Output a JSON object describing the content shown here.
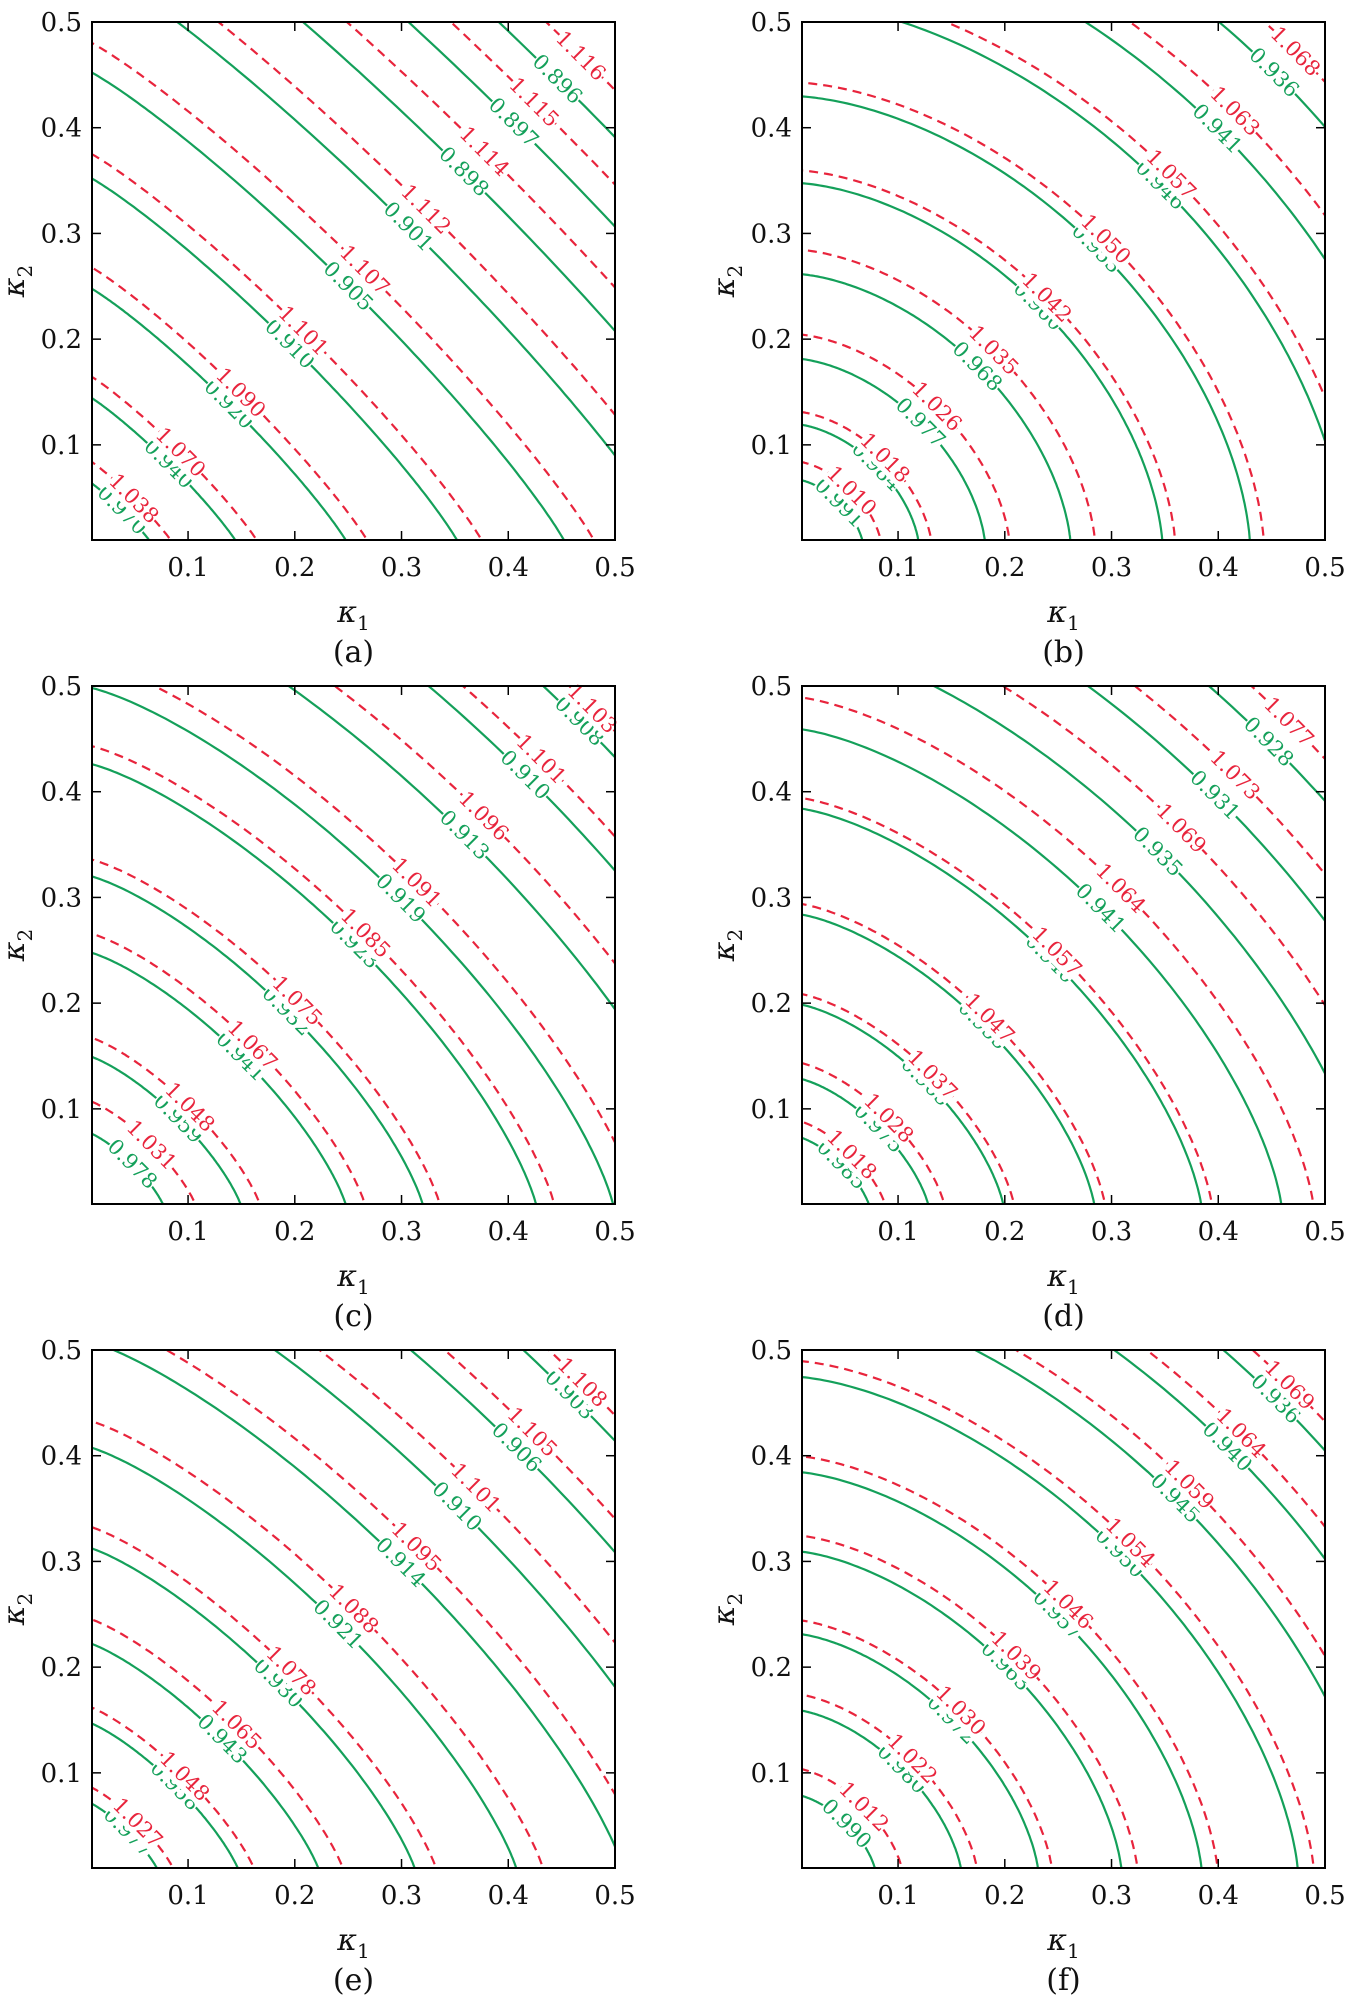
{
  "chart_data": [
    {
      "type": "contour",
      "caption": "(a)",
      "xlabel": "κ1",
      "ylabel": "κ2",
      "xlim": [
        0.01,
        0.5
      ],
      "ylim": [
        0.01,
        0.5
      ],
      "xticks": [
        "0.1",
        "0.2",
        "0.3",
        "0.4",
        "0.5"
      ],
      "yticks": [
        "0.1",
        "0.2",
        "0.3",
        "0.4",
        "0.5"
      ],
      "colors": {
        "solid": "#14a05a",
        "dashed": "#e8243c"
      },
      "shape": 1.15,
      "solid_levels": [
        {
          "label": "0.970",
          "intercept": 0.07
        },
        {
          "label": "0.940",
          "intercept": 0.15
        },
        {
          "label": "0.920",
          "intercept": 0.253
        },
        {
          "label": "0.910",
          "intercept": 0.357
        },
        {
          "label": "0.905",
          "intercept": 0.457
        },
        {
          "label": "0.901",
          "intercept": 0.56
        },
        {
          "label": "0.898",
          "intercept": 0.655
        },
        {
          "label": "0.897",
          "intercept": 0.74
        },
        {
          "label": "0.896",
          "intercept": 0.815
        }
      ],
      "dashed_levels": [
        {
          "label": "1.038",
          "intercept": 0.09
        },
        {
          "label": "1.070",
          "intercept": 0.17
        },
        {
          "label": "1.090",
          "intercept": 0.273
        },
        {
          "label": "1.101",
          "intercept": 0.38
        },
        {
          "label": "1.107",
          "intercept": 0.485
        },
        {
          "label": "1.112",
          "intercept": 0.59
        },
        {
          "label": "1.114",
          "intercept": 0.69
        },
        {
          "label": "1.115",
          "intercept": 0.775
        },
        {
          "label": "1.116",
          "intercept": 0.855
        }
      ]
    },
    {
      "type": "contour",
      "caption": "(b)",
      "xlabel": "κ1",
      "ylabel": "κ2",
      "xlim": [
        0.01,
        0.5
      ],
      "ylim": [
        0.01,
        0.5
      ],
      "xticks": [
        "0.1",
        "0.2",
        "0.3",
        "0.4",
        "0.5"
      ],
      "yticks": [
        "0.1",
        "0.2",
        "0.3",
        "0.4",
        "0.5"
      ],
      "colors": {
        "solid": "#14a05a",
        "dashed": "#e8243c"
      },
      "shape": 1.7,
      "solid_levels": [
        {
          "label": "0.991",
          "intercept": 0.068
        },
        {
          "label": "0.984",
          "intercept": 0.12
        },
        {
          "label": "0.977",
          "intercept": 0.182
        },
        {
          "label": "0.968",
          "intercept": 0.262
        },
        {
          "label": "0.960",
          "intercept": 0.348
        },
        {
          "label": "0.953",
          "intercept": 0.43
        },
        {
          "label": "0.946",
          "intercept": 0.52
        },
        {
          "label": "0.941",
          "intercept": 0.6
        },
        {
          "label": "0.936",
          "intercept": 0.68
        }
      ],
      "dashed_levels": [
        {
          "label": "1.010",
          "intercept": 0.085
        },
        {
          "label": "1.018",
          "intercept": 0.132
        },
        {
          "label": "1.026",
          "intercept": 0.205
        },
        {
          "label": "1.035",
          "intercept": 0.285
        },
        {
          "label": "1.042",
          "intercept": 0.36
        },
        {
          "label": "1.050",
          "intercept": 0.443
        },
        {
          "label": "1.057",
          "intercept": 0.535
        },
        {
          "label": "1.063",
          "intercept": 0.625
        },
        {
          "label": "1.068",
          "intercept": 0.71
        }
      ]
    },
    {
      "type": "contour",
      "caption": "(c)",
      "xlabel": "κ1",
      "ylabel": "κ2",
      "xlim": [
        0.01,
        0.5
      ],
      "ylim": [
        0.01,
        0.5
      ],
      "xticks": [
        "0.1",
        "0.2",
        "0.3",
        "0.4",
        "0.5"
      ],
      "yticks": [
        "0.1",
        "0.2",
        "0.3",
        "0.4",
        "0.5"
      ],
      "colors": {
        "solid": "#14a05a",
        "dashed": "#e8243c"
      },
      "shape": 1.35,
      "solid_levels": [
        {
          "label": "0.978",
          "intercept": 0.08
        },
        {
          "label": "0.959",
          "intercept": 0.152
        },
        {
          "label": "0.941",
          "intercept": 0.25
        },
        {
          "label": "0.932",
          "intercept": 0.322
        },
        {
          "label": "0.923",
          "intercept": 0.428
        },
        {
          "label": "0.919",
          "intercept": 0.5
        },
        {
          "label": "0.913",
          "intercept": 0.6
        },
        {
          "label": "0.910",
          "intercept": 0.695
        },
        {
          "label": "0.908",
          "intercept": 0.78
        }
      ],
      "dashed_levels": [
        {
          "label": "1.031",
          "intercept": 0.11
        },
        {
          "label": "1.048",
          "intercept": 0.17
        },
        {
          "label": "1.067",
          "intercept": 0.268
        },
        {
          "label": "1.075",
          "intercept": 0.338
        },
        {
          "label": "1.085",
          "intercept": 0.445
        },
        {
          "label": "1.091",
          "intercept": 0.525
        },
        {
          "label": "1.096",
          "intercept": 0.63
        },
        {
          "label": "1.101",
          "intercept": 0.72
        },
        {
          "label": "1.103",
          "intercept": 0.8
        }
      ]
    },
    {
      "type": "contour",
      "caption": "(d)",
      "xlabel": "κ1",
      "ylabel": "κ2",
      "xlim": [
        0.01,
        0.5
      ],
      "ylim": [
        0.01,
        0.5
      ],
      "xticks": [
        "0.1",
        "0.2",
        "0.3",
        "0.4",
        "0.5"
      ],
      "yticks": [
        "0.1",
        "0.2",
        "0.3",
        "0.4",
        "0.5"
      ],
      "colors": {
        "solid": "#14a05a",
        "dashed": "#e8243c"
      },
      "shape": 1.5,
      "solid_levels": [
        {
          "label": "0.985",
          "intercept": 0.075
        },
        {
          "label": "0.975",
          "intercept": 0.13
        },
        {
          "label": "0.965",
          "intercept": 0.2
        },
        {
          "label": "0.955",
          "intercept": 0.285
        },
        {
          "label": "0.946",
          "intercept": 0.385
        },
        {
          "label": "0.941",
          "intercept": 0.46
        },
        {
          "label": "0.935",
          "intercept": 0.545
        },
        {
          "label": "0.931",
          "intercept": 0.63
        },
        {
          "label": "0.928",
          "intercept": 0.71
        }
      ],
      "dashed_levels": [
        {
          "label": "1.018",
          "intercept": 0.09
        },
        {
          "label": "1.028",
          "intercept": 0.145
        },
        {
          "label": "1.037",
          "intercept": 0.21
        },
        {
          "label": "1.047",
          "intercept": 0.295
        },
        {
          "label": "1.057",
          "intercept": 0.395
        },
        {
          "label": "1.064",
          "intercept": 0.49
        },
        {
          "label": "1.069",
          "intercept": 0.58
        },
        {
          "label": "1.073",
          "intercept": 0.66
        },
        {
          "label": "1.077",
          "intercept": 0.74
        }
      ]
    },
    {
      "type": "contour",
      "caption": "(e)",
      "xlabel": "κ1",
      "ylabel": "κ2",
      "xlim": [
        0.01,
        0.5
      ],
      "ylim": [
        0.01,
        0.5
      ],
      "xticks": [
        "0.1",
        "0.2",
        "0.3",
        "0.4",
        "0.5"
      ],
      "yticks": [
        "0.1",
        "0.2",
        "0.3",
        "0.4",
        "0.5"
      ],
      "colors": {
        "solid": "#14a05a",
        "dashed": "#e8243c"
      },
      "shape": 1.3,
      "solid_levels": [
        {
          "label": "0.977",
          "intercept": 0.075
        },
        {
          "label": "0.958",
          "intercept": 0.15
        },
        {
          "label": "0.943",
          "intercept": 0.225
        },
        {
          "label": "0.930",
          "intercept": 0.315
        },
        {
          "label": "0.921",
          "intercept": 0.41
        },
        {
          "label": "0.914",
          "intercept": 0.51
        },
        {
          "label": "0.910",
          "intercept": 0.6
        },
        {
          "label": "0.906",
          "intercept": 0.695
        },
        {
          "label": "0.903",
          "intercept": 0.78
        }
      ],
      "dashed_levels": [
        {
          "label": "1.027",
          "intercept": 0.09
        },
        {
          "label": "1.048",
          "intercept": 0.165
        },
        {
          "label": "1.065",
          "intercept": 0.248
        },
        {
          "label": "1.078",
          "intercept": 0.335
        },
        {
          "label": "1.088",
          "intercept": 0.435
        },
        {
          "label": "1.095",
          "intercept": 0.535
        },
        {
          "label": "1.101",
          "intercept": 0.63
        },
        {
          "label": "1.105",
          "intercept": 0.72
        },
        {
          "label": "1.108",
          "intercept": 0.8
        }
      ]
    },
    {
      "type": "contour",
      "caption": "(f)",
      "xlabel": "κ1",
      "ylabel": "κ2",
      "xlim": [
        0.01,
        0.5
      ],
      "ylim": [
        0.01,
        0.5
      ],
      "xticks": [
        "0.1",
        "0.2",
        "0.3",
        "0.4",
        "0.5"
      ],
      "yticks": [
        "0.1",
        "0.2",
        "0.3",
        "0.4",
        "0.5"
      ],
      "colors": {
        "solid": "#14a05a",
        "dashed": "#e8243c"
      },
      "shape": 1.6,
      "solid_levels": [
        {
          "label": "0.990",
          "intercept": 0.08
        },
        {
          "label": "0.980",
          "intercept": 0.16
        },
        {
          "label": "0.972",
          "intercept": 0.232
        },
        {
          "label": "0.963",
          "intercept": 0.31
        },
        {
          "label": "0.957",
          "intercept": 0.385
        },
        {
          "label": "0.950",
          "intercept": 0.475
        },
        {
          "label": "0.945",
          "intercept": 0.555
        },
        {
          "label": "0.940",
          "intercept": 0.63
        },
        {
          "label": "0.936",
          "intercept": 0.7
        }
      ],
      "dashed_levels": [
        {
          "label": "1.012",
          "intercept": 0.105
        },
        {
          "label": "1.022",
          "intercept": 0.175
        },
        {
          "label": "1.030",
          "intercept": 0.245
        },
        {
          "label": "1.039",
          "intercept": 0.325
        },
        {
          "label": "1.046",
          "intercept": 0.4
        },
        {
          "label": "1.054",
          "intercept": 0.49
        },
        {
          "label": "1.059",
          "intercept": 0.575
        },
        {
          "label": "1.064",
          "intercept": 0.65
        },
        {
          "label": "1.069",
          "intercept": 0.72
        }
      ]
    }
  ]
}
